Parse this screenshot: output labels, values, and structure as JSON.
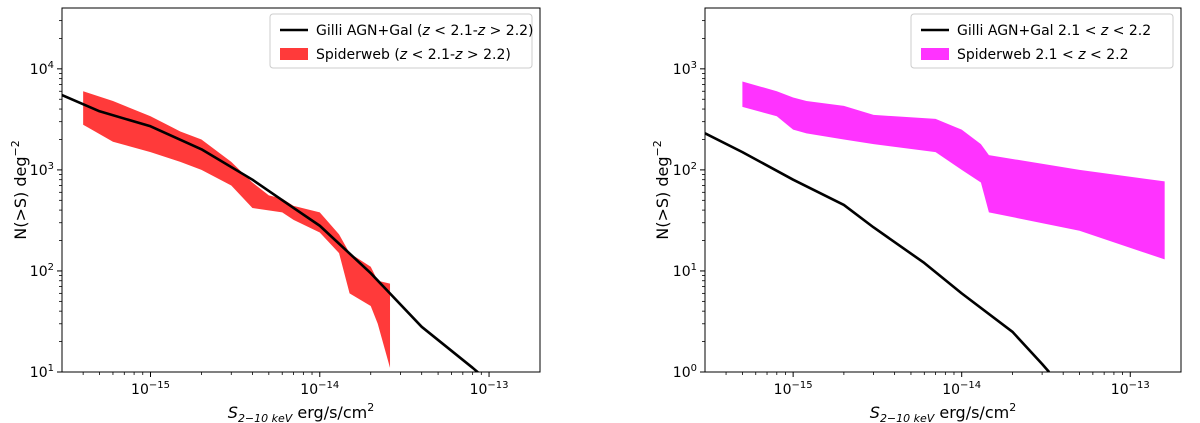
{
  "charts": [
    {
      "type": "area",
      "xscale": "log",
      "yscale": "log",
      "xlim": [
        3e-16,
        2e-13
      ],
      "ylim": [
        10,
        40000
      ],
      "xlabel": "S_{2-10 keV} erg/s/cm^2",
      "ylabel": "N(>S) deg^-2",
      "xticks": [
        1e-15,
        1e-14,
        1e-13
      ],
      "yticks": [
        10,
        100,
        1000,
        10000
      ],
      "legend": {
        "position": "top-right"
      },
      "series": [
        {
          "name": "Gilli AGN+Gal (z < 2.1-z > 2.2)",
          "kind": "line",
          "color": "#000000",
          "points": [
            [
              3e-16,
              5500
            ],
            [
              5e-16,
              3800
            ],
            [
              1e-15,
              2700
            ],
            [
              2e-15,
              1600
            ],
            [
              4e-15,
              800
            ],
            [
              7e-15,
              420
            ],
            [
              1e-14,
              280
            ],
            [
              2e-14,
              95
            ],
            [
              4e-14,
              28
            ],
            [
              8e-14,
              11
            ],
            [
              1e-13,
              8
            ]
          ]
        },
        {
          "name": "Spiderweb (z < 2.1-z > 2.2)",
          "kind": "band",
          "color": "#ff3a3a",
          "upper": [
            [
              4e-16,
              6000
            ],
            [
              6e-16,
              4800
            ],
            [
              1e-15,
              3400
            ],
            [
              1.5e-15,
              2400
            ],
            [
              2e-15,
              2000
            ],
            [
              3e-15,
              1200
            ],
            [
              4e-15,
              750
            ],
            [
              5e-15,
              560
            ],
            [
              6e-15,
              520
            ],
            [
              7e-15,
              440
            ],
            [
              1e-14,
              380
            ],
            [
              1.3e-14,
              230
            ],
            [
              1.5e-14,
              150
            ],
            [
              2e-14,
              110
            ],
            [
              2.2e-14,
              80
            ],
            [
              2.6e-14,
              75
            ]
          ],
          "lower": [
            [
              4e-16,
              2800
            ],
            [
              6e-16,
              1900
            ],
            [
              1e-15,
              1500
            ],
            [
              1.5e-15,
              1200
            ],
            [
              2e-15,
              1000
            ],
            [
              3e-15,
              700
            ],
            [
              4e-15,
              420
            ],
            [
              6e-15,
              380
            ],
            [
              7e-15,
              320
            ],
            [
              1e-14,
              240
            ],
            [
              1.3e-14,
              150
            ],
            [
              1.5e-14,
              60
            ],
            [
              2e-14,
              45
            ],
            [
              2.2e-14,
              30
            ],
            [
              2.6e-14,
              11
            ]
          ]
        }
      ]
    },
    {
      "type": "area",
      "xscale": "log",
      "yscale": "log",
      "xlim": [
        3e-16,
        2e-13
      ],
      "ylim": [
        1,
        4000
      ],
      "xlabel": "S_{2-10 keV} erg/s/cm^2",
      "ylabel": "N(>S) deg^-2",
      "xticks": [
        1e-15,
        1e-14,
        1e-13
      ],
      "yticks": [
        1,
        10,
        100,
        1000
      ],
      "legend": {
        "position": "top-right"
      },
      "series": [
        {
          "name": "Gilli AGN+Gal 2.1 < z < 2.2",
          "kind": "line",
          "color": "#000000",
          "points": [
            [
              3e-16,
              230
            ],
            [
              5e-16,
              150
            ],
            [
              1e-15,
              80
            ],
            [
              2e-15,
              45
            ],
            [
              3e-15,
              27
            ],
            [
              6e-15,
              12
            ],
            [
              1e-14,
              6
            ],
            [
              2e-14,
              2.5
            ],
            [
              3e-14,
              1.2
            ],
            [
              3.3e-14,
              1
            ]
          ]
        },
        {
          "name": "Spiderweb 2.1 < z < 2.2",
          "kind": "band",
          "color": "#ff33ff",
          "upper": [
            [
              5e-16,
              750
            ],
            [
              8e-16,
              600
            ],
            [
              1e-15,
              520
            ],
            [
              1.2e-15,
              480
            ],
            [
              2e-15,
              430
            ],
            [
              3e-15,
              350
            ],
            [
              7e-15,
              320
            ],
            [
              1e-14,
              250
            ],
            [
              1.3e-14,
              180
            ],
            [
              1.45e-14,
              140
            ],
            [
              5e-14,
              100
            ],
            [
              1.6e-13,
              77
            ]
          ],
          "lower": [
            [
              5e-16,
              420
            ],
            [
              8e-16,
              340
            ],
            [
              1e-15,
              250
            ],
            [
              1.2e-15,
              230
            ],
            [
              2e-15,
              200
            ],
            [
              3e-15,
              180
            ],
            [
              7e-15,
              150
            ],
            [
              1e-14,
              100
            ],
            [
              1.3e-14,
              75
            ],
            [
              1.45e-14,
              38
            ],
            [
              5e-14,
              25
            ],
            [
              1.6e-13,
              13
            ]
          ]
        }
      ]
    }
  ]
}
